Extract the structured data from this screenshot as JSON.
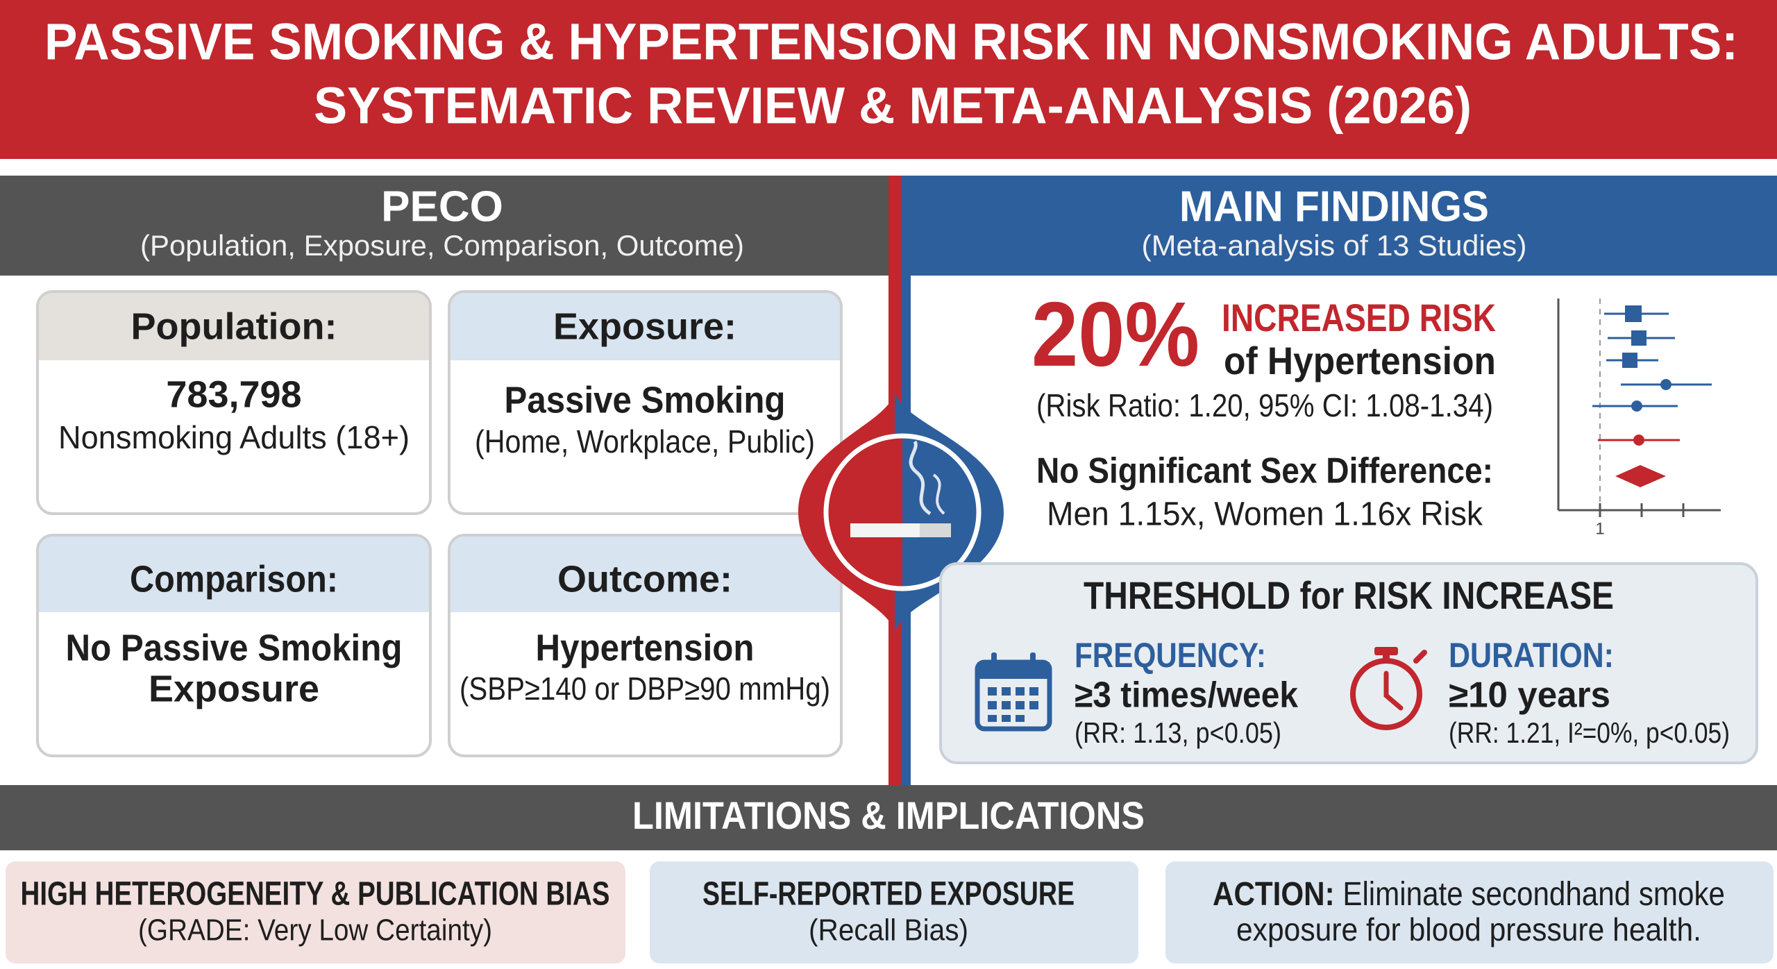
{
  "header": {
    "title_line1": "PASSIVE SMOKING & HYPERTENSION RISK IN NONSMOKING ADULTS:",
    "title_line2": "SYSTEMATIC REVIEW & META-ANALYSIS (2026)"
  },
  "peco": {
    "title": "PECO",
    "subtitle": "(Population, Exposure, Comparison, Outcome)",
    "population": {
      "label": "Population:",
      "line1": "783,798",
      "line2": "Nonsmoking Adults (18+)"
    },
    "exposure": {
      "label": "Exposure:",
      "line1": "Passive Smoking",
      "line2": "(Home, Workplace, Public)"
    },
    "comparison": {
      "label": "Comparison:",
      "line1": "No Passive Smoking",
      "line2": "Exposure"
    },
    "outcome": {
      "label": "Outcome:",
      "line1": "Hypertension",
      "line2": "(SBP≥140 or DBP≥90 mmHg)"
    }
  },
  "main_findings": {
    "title": "MAIN FINDINGS",
    "subtitle": "(Meta-analysis of 13 Studies)",
    "headline_value": "20%",
    "headline_line1": "INCREASED RISK",
    "headline_line2": "of Hypertension",
    "risk_ratio": "(Risk Ratio: 1.20, 95% CI: 1.08-1.34)",
    "sex_heading": "No Significant Sex Difference:",
    "sex_detail": "Men 1.15x, Women 1.16x Risk",
    "forest_plot_tick": "1"
  },
  "threshold": {
    "title": "THRESHOLD for RISK INCREASE",
    "frequency": {
      "label": "FREQUENCY:",
      "value": "≥3 times/week",
      "stats": "(RR: 1.13, p<0.05)"
    },
    "duration": {
      "label": "DURATION:",
      "value": "≥10 years",
      "stats": "(RR: 1.21, I²=0%, p<0.05)"
    }
  },
  "limitations": {
    "title": "LIMITATIONS & IMPLICATIONS",
    "items": [
      {
        "heading": "HIGH HETEROGENEITY & PUBLICATION BIAS",
        "detail": "(GRADE: Very Low Certainty)"
      },
      {
        "heading": "SELF-REPORTED EXPOSURE",
        "detail": "(Recall Bias)"
      }
    ],
    "action": {
      "label": "ACTION:",
      "line1": " Eliminate secondhand smoke",
      "line2": "exposure for blood pressure health."
    }
  }
}
